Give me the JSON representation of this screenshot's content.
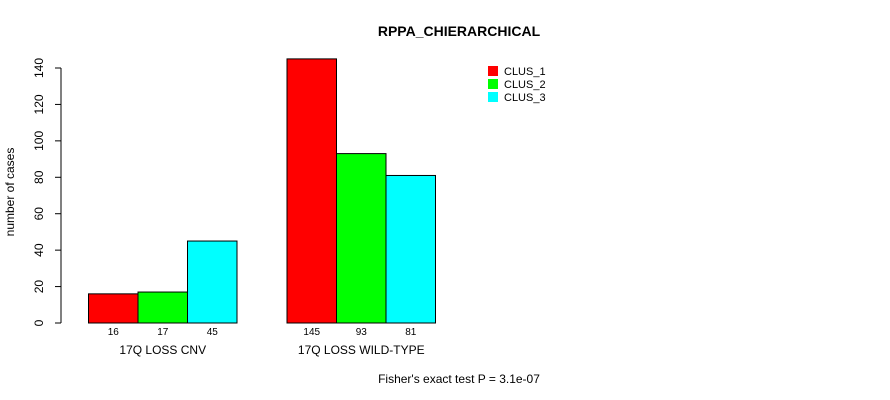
{
  "chart_data": {
    "type": "bar",
    "title": "RPPA_CHIERARCHICAL",
    "ylabel": "number of cases",
    "xlabel": "",
    "ylim": [
      0,
      140
    ],
    "yticks": [
      0,
      20,
      40,
      60,
      80,
      100,
      120,
      140
    ],
    "categories": [
      "17Q LOSS CNV",
      "17Q LOSS WILD-TYPE"
    ],
    "series": [
      {
        "name": "CLUS_1",
        "color": "#ff0000",
        "values": [
          16,
          145
        ]
      },
      {
        "name": "CLUS_2",
        "color": "#00ff00",
        "values": [
          17,
          93
        ]
      },
      {
        "name": "CLUS_3",
        "color": "#00ffff",
        "values": [
          45,
          81
        ]
      }
    ],
    "legend": "top-right",
    "grid": false,
    "footnote": "Fisher's exact test P = 3.1e-07"
  }
}
